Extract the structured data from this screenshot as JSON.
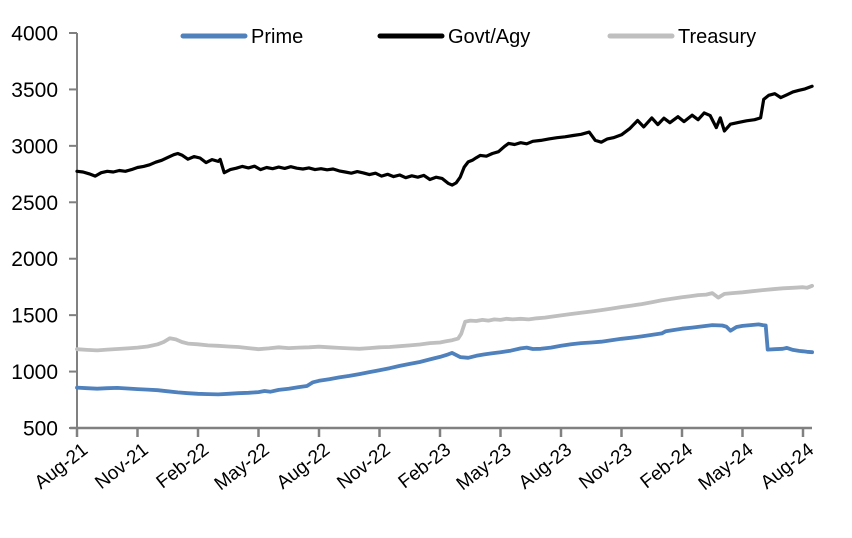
{
  "chart_data": {
    "type": "line",
    "title": "",
    "grid": false,
    "axis_color": "#808080",
    "text_color": "#000000",
    "background_color": "#ffffff",
    "x_axis": {
      "tick_labels": [
        "Aug-21",
        "Nov-21",
        "Feb-22",
        "May-22",
        "Aug-22",
        "Nov-22",
        "Feb-23",
        "May-23",
        "Aug-23",
        "Nov-23",
        "Feb-24",
        "May-24",
        "Aug-24"
      ],
      "months_per_tick": 3,
      "range_months": [
        0,
        36.5
      ],
      "label_rotation_deg": -38
    },
    "y_axis": {
      "ticks": [
        500,
        1000,
        1500,
        2000,
        2500,
        3000,
        3500,
        4000
      ],
      "range": [
        500,
        4000
      ]
    },
    "legend": {
      "position": "top",
      "entries": [
        "Prime",
        "Govt/Agy",
        "Treasury"
      ]
    },
    "series": [
      {
        "name": "Prime",
        "color": "#4f81bd",
        "line_width": 3.8,
        "points": [
          [
            0,
            858
          ],
          [
            0.5,
            853
          ],
          [
            1,
            848
          ],
          [
            1.5,
            853
          ],
          [
            2,
            855
          ],
          [
            2.5,
            850
          ],
          [
            3,
            845
          ],
          [
            3.5,
            840
          ],
          [
            4,
            835
          ],
          [
            4.5,
            825
          ],
          [
            5,
            815
          ],
          [
            5.5,
            808
          ],
          [
            6,
            803
          ],
          [
            6.5,
            800
          ],
          [
            7,
            798
          ],
          [
            7.5,
            803
          ],
          [
            8,
            808
          ],
          [
            8.5,
            812
          ],
          [
            9,
            818
          ],
          [
            9.3,
            828
          ],
          [
            9.6,
            822
          ],
          [
            10,
            838
          ],
          [
            10.5,
            848
          ],
          [
            11,
            862
          ],
          [
            11.4,
            872
          ],
          [
            11.7,
            905
          ],
          [
            12,
            918
          ],
          [
            12.5,
            932
          ],
          [
            13,
            948
          ],
          [
            13.5,
            962
          ],
          [
            14,
            978
          ],
          [
            14.5,
            995
          ],
          [
            15,
            1012
          ],
          [
            15.5,
            1030
          ],
          [
            16,
            1050
          ],
          [
            16.5,
            1068
          ],
          [
            17,
            1085
          ],
          [
            17.5,
            1108
          ],
          [
            18,
            1130
          ],
          [
            18.4,
            1152
          ],
          [
            18.6,
            1165
          ],
          [
            19,
            1128
          ],
          [
            19.4,
            1122
          ],
          [
            19.8,
            1140
          ],
          [
            20.2,
            1152
          ],
          [
            20.6,
            1162
          ],
          [
            21,
            1172
          ],
          [
            21.5,
            1185
          ],
          [
            22,
            1205
          ],
          [
            22.3,
            1212
          ],
          [
            22.6,
            1200
          ],
          [
            23,
            1202
          ],
          [
            23.5,
            1212
          ],
          [
            24,
            1228
          ],
          [
            24.5,
            1242
          ],
          [
            25,
            1252
          ],
          [
            25.5,
            1258
          ],
          [
            26,
            1265
          ],
          [
            26.5,
            1278
          ],
          [
            27,
            1290
          ],
          [
            27.5,
            1300
          ],
          [
            28,
            1312
          ],
          [
            28.5,
            1325
          ],
          [
            29,
            1338
          ],
          [
            29.2,
            1358
          ],
          [
            29.6,
            1368
          ],
          [
            30,
            1380
          ],
          [
            30.5,
            1390
          ],
          [
            31,
            1400
          ],
          [
            31.5,
            1412
          ],
          [
            32,
            1408
          ],
          [
            32.2,
            1398
          ],
          [
            32.4,
            1362
          ],
          [
            32.7,
            1395
          ],
          [
            33,
            1405
          ],
          [
            33.4,
            1412
          ],
          [
            33.8,
            1418
          ],
          [
            34,
            1412
          ],
          [
            34.15,
            1408
          ],
          [
            34.25,
            1195
          ],
          [
            34.6,
            1198
          ],
          [
            35,
            1202
          ],
          [
            35.2,
            1210
          ],
          [
            35.5,
            1192
          ],
          [
            35.8,
            1183
          ],
          [
            36,
            1180
          ],
          [
            36.2,
            1175
          ],
          [
            36.45,
            1172
          ]
        ]
      },
      {
        "name": "Govt/Agy",
        "color": "#000000",
        "line_width": 3.2,
        "points": [
          [
            0,
            2775
          ],
          [
            0.3,
            2768
          ],
          [
            0.6,
            2752
          ],
          [
            0.9,
            2732
          ],
          [
            1.2,
            2762
          ],
          [
            1.5,
            2775
          ],
          [
            1.8,
            2768
          ],
          [
            2.1,
            2782
          ],
          [
            2.4,
            2775
          ],
          [
            2.7,
            2790
          ],
          [
            3,
            2808
          ],
          [
            3.3,
            2818
          ],
          [
            3.6,
            2832
          ],
          [
            3.9,
            2855
          ],
          [
            4.2,
            2872
          ],
          [
            4.5,
            2898
          ],
          [
            4.8,
            2922
          ],
          [
            5,
            2932
          ],
          [
            5.2,
            2918
          ],
          [
            5.5,
            2882
          ],
          [
            5.8,
            2905
          ],
          [
            6.1,
            2892
          ],
          [
            6.4,
            2852
          ],
          [
            6.7,
            2878
          ],
          [
            7,
            2862
          ],
          [
            7.1,
            2880
          ],
          [
            7.3,
            2762
          ],
          [
            7.6,
            2790
          ],
          [
            7.9,
            2802
          ],
          [
            8.2,
            2818
          ],
          [
            8.5,
            2805
          ],
          [
            8.8,
            2820
          ],
          [
            9.1,
            2790
          ],
          [
            9.4,
            2808
          ],
          [
            9.7,
            2798
          ],
          [
            10,
            2812
          ],
          [
            10.3,
            2800
          ],
          [
            10.6,
            2815
          ],
          [
            10.9,
            2802
          ],
          [
            11.2,
            2795
          ],
          [
            11.5,
            2805
          ],
          [
            11.8,
            2790
          ],
          [
            12.1,
            2798
          ],
          [
            12.4,
            2788
          ],
          [
            12.7,
            2795
          ],
          [
            13,
            2778
          ],
          [
            13.3,
            2768
          ],
          [
            13.6,
            2758
          ],
          [
            13.9,
            2772
          ],
          [
            14.2,
            2760
          ],
          [
            14.5,
            2745
          ],
          [
            14.8,
            2758
          ],
          [
            15.1,
            2732
          ],
          [
            15.4,
            2748
          ],
          [
            15.7,
            2728
          ],
          [
            16,
            2742
          ],
          [
            16.3,
            2718
          ],
          [
            16.6,
            2735
          ],
          [
            16.9,
            2722
          ],
          [
            17.2,
            2738
          ],
          [
            17.5,
            2702
          ],
          [
            17.8,
            2722
          ],
          [
            18.1,
            2712
          ],
          [
            18.4,
            2668
          ],
          [
            18.6,
            2652
          ],
          [
            18.8,
            2672
          ],
          [
            19,
            2722
          ],
          [
            19.2,
            2812
          ],
          [
            19.4,
            2858
          ],
          [
            19.6,
            2872
          ],
          [
            19.8,
            2895
          ],
          [
            20,
            2915
          ],
          [
            20.3,
            2908
          ],
          [
            20.6,
            2932
          ],
          [
            20.9,
            2948
          ],
          [
            21.2,
            2995
          ],
          [
            21.4,
            3022
          ],
          [
            21.7,
            3012
          ],
          [
            22,
            3028
          ],
          [
            22.3,
            3018
          ],
          [
            22.6,
            3040
          ],
          [
            23,
            3048
          ],
          [
            23.4,
            3062
          ],
          [
            23.8,
            3072
          ],
          [
            24.2,
            3080
          ],
          [
            24.6,
            3092
          ],
          [
            25,
            3102
          ],
          [
            25.4,
            3122
          ],
          [
            25.7,
            3048
          ],
          [
            26,
            3032
          ],
          [
            26.3,
            3062
          ],
          [
            26.6,
            3072
          ],
          [
            27,
            3098
          ],
          [
            27.4,
            3152
          ],
          [
            27.8,
            3225
          ],
          [
            28.1,
            3168
          ],
          [
            28.5,
            3248
          ],
          [
            28.8,
            3188
          ],
          [
            29.1,
            3245
          ],
          [
            29.4,
            3205
          ],
          [
            29.8,
            3258
          ],
          [
            30.1,
            3215
          ],
          [
            30.5,
            3272
          ],
          [
            30.8,
            3232
          ],
          [
            31.1,
            3292
          ],
          [
            31.4,
            3268
          ],
          [
            31.7,
            3162
          ],
          [
            31.9,
            3248
          ],
          [
            32.1,
            3132
          ],
          [
            32.4,
            3192
          ],
          [
            32.8,
            3208
          ],
          [
            33.2,
            3222
          ],
          [
            33.6,
            3232
          ],
          [
            33.9,
            3248
          ],
          [
            34.05,
            3412
          ],
          [
            34.3,
            3448
          ],
          [
            34.6,
            3462
          ],
          [
            34.9,
            3428
          ],
          [
            35.2,
            3452
          ],
          [
            35.5,
            3478
          ],
          [
            35.8,
            3492
          ],
          [
            36.1,
            3505
          ],
          [
            36.45,
            3528
          ]
        ]
      },
      {
        "name": "Treasury",
        "color": "#bfbfbf",
        "line_width": 3.8,
        "points": [
          [
            0,
            1198
          ],
          [
            0.5,
            1192
          ],
          [
            1,
            1188
          ],
          [
            1.5,
            1195
          ],
          [
            2,
            1200
          ],
          [
            2.5,
            1205
          ],
          [
            3,
            1212
          ],
          [
            3.5,
            1222
          ],
          [
            4,
            1242
          ],
          [
            4.3,
            1262
          ],
          [
            4.6,
            1295
          ],
          [
            4.9,
            1285
          ],
          [
            5.2,
            1262
          ],
          [
            5.5,
            1248
          ],
          [
            6,
            1242
          ],
          [
            6.5,
            1232
          ],
          [
            7,
            1228
          ],
          [
            7.5,
            1222
          ],
          [
            8,
            1218
          ],
          [
            8.5,
            1208
          ],
          [
            9,
            1198
          ],
          [
            9.5,
            1205
          ],
          [
            10,
            1215
          ],
          [
            10.5,
            1208
          ],
          [
            11,
            1212
          ],
          [
            11.5,
            1215
          ],
          [
            12,
            1220
          ],
          [
            12.5,
            1215
          ],
          [
            13,
            1210
          ],
          [
            13.5,
            1205
          ],
          [
            14,
            1202
          ],
          [
            14.5,
            1208
          ],
          [
            15,
            1215
          ],
          [
            15.5,
            1218
          ],
          [
            16,
            1225
          ],
          [
            16.5,
            1232
          ],
          [
            17,
            1240
          ],
          [
            17.5,
            1252
          ],
          [
            18,
            1258
          ],
          [
            18.3,
            1268
          ],
          [
            18.6,
            1278
          ],
          [
            18.9,
            1292
          ],
          [
            19.05,
            1335
          ],
          [
            19.25,
            1442
          ],
          [
            19.5,
            1452
          ],
          [
            19.8,
            1448
          ],
          [
            20.1,
            1458
          ],
          [
            20.4,
            1452
          ],
          [
            20.7,
            1462
          ],
          [
            21,
            1458
          ],
          [
            21.3,
            1468
          ],
          [
            21.6,
            1462
          ],
          [
            22,
            1468
          ],
          [
            22.4,
            1462
          ],
          [
            22.8,
            1472
          ],
          [
            23.2,
            1478
          ],
          [
            23.6,
            1488
          ],
          [
            24,
            1498
          ],
          [
            24.5,
            1510
          ],
          [
            25,
            1522
          ],
          [
            25.5,
            1532
          ],
          [
            26,
            1545
          ],
          [
            26.5,
            1558
          ],
          [
            27,
            1572
          ],
          [
            27.5,
            1585
          ],
          [
            28,
            1598
          ],
          [
            28.5,
            1615
          ],
          [
            29,
            1632
          ],
          [
            29.5,
            1645
          ],
          [
            30,
            1658
          ],
          [
            30.4,
            1668
          ],
          [
            30.8,
            1678
          ],
          [
            31.2,
            1682
          ],
          [
            31.5,
            1695
          ],
          [
            31.8,
            1655
          ],
          [
            32.1,
            1688
          ],
          [
            32.5,
            1695
          ],
          [
            33,
            1702
          ],
          [
            33.5,
            1712
          ],
          [
            34,
            1722
          ],
          [
            34.5,
            1730
          ],
          [
            35,
            1738
          ],
          [
            35.5,
            1742
          ],
          [
            36,
            1748
          ],
          [
            36.2,
            1742
          ],
          [
            36.45,
            1760
          ]
        ]
      }
    ]
  }
}
